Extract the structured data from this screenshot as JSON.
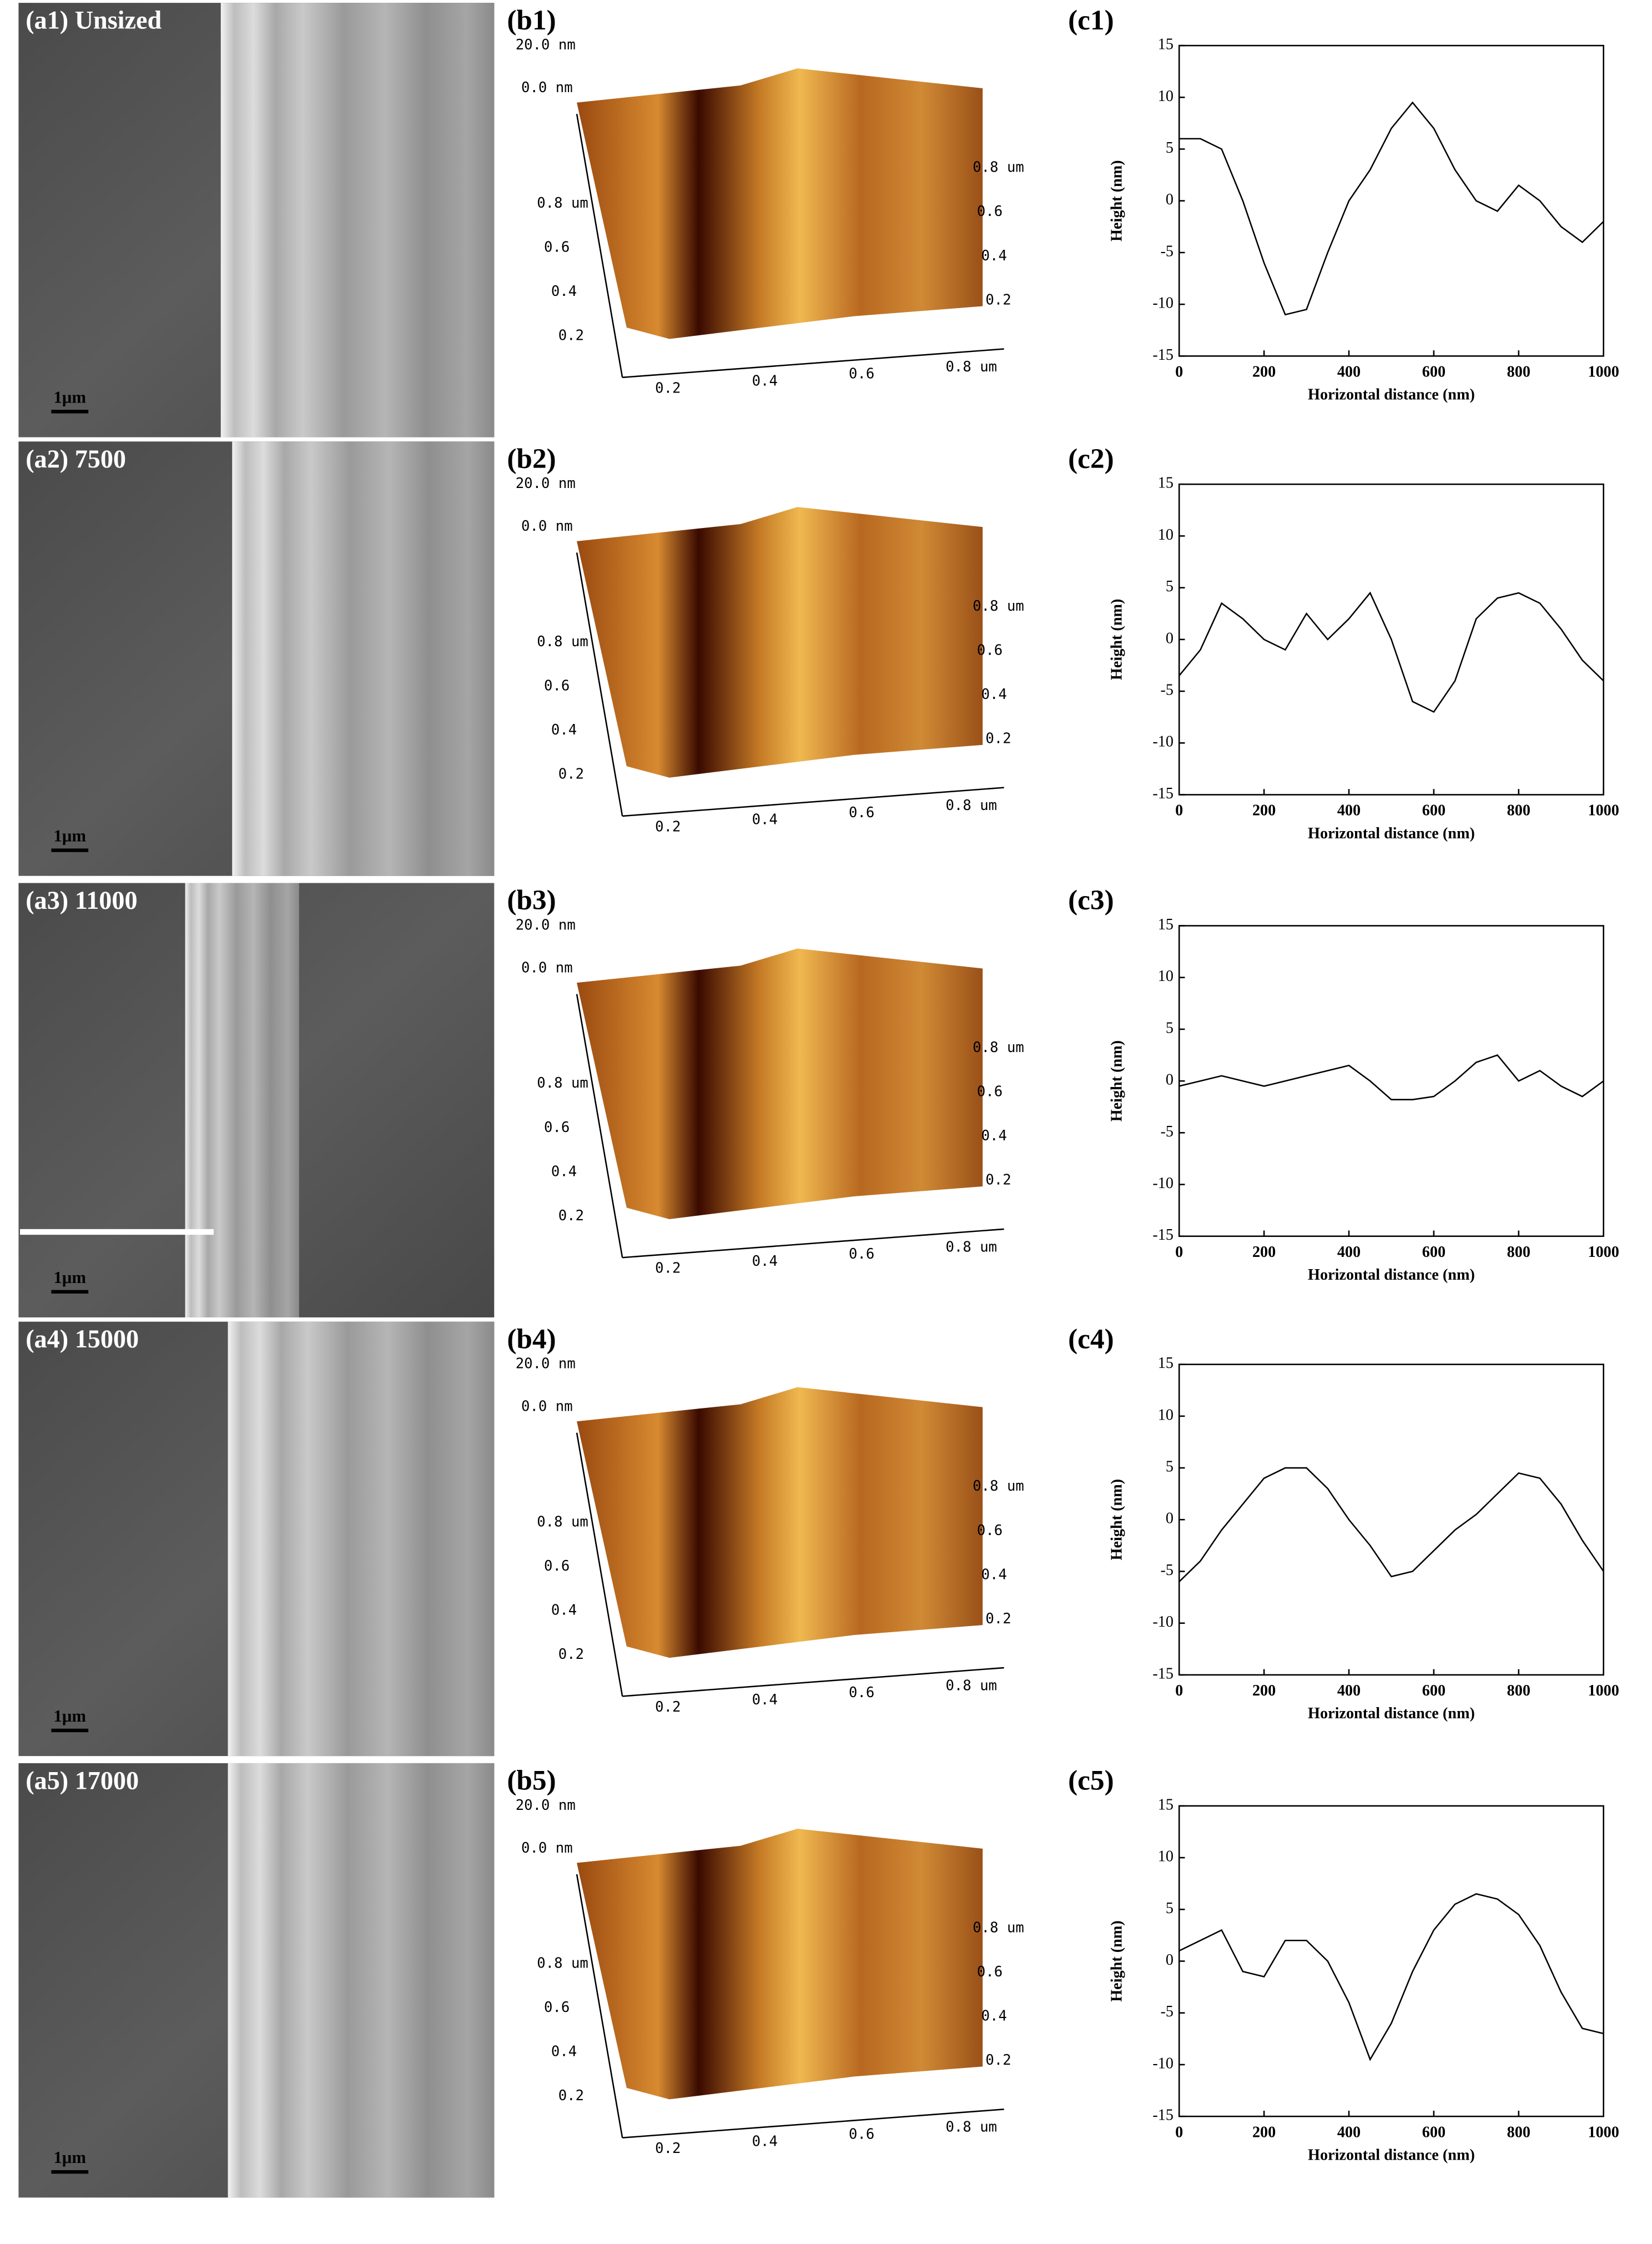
{
  "panels": [
    {
      "a_label": "(a1) Unsized",
      "scale_bar": "1μm",
      "b_label": "(b1)",
      "z_top": "20.0 nm",
      "z_zero": "0.0 nm",
      "left_ticks": [
        "0.8 um",
        "0.6",
        "0.4",
        "0.2"
      ],
      "right_ticks": [
        "0.8 um",
        "0.6",
        "0.4",
        "0.2"
      ],
      "bottom_ticks": [
        "0.2",
        "0.4",
        "0.6",
        "0.8 um"
      ]
    },
    {
      "a_label": "(a2) 7500",
      "scale_bar": "1μm",
      "b_label": "(b2)",
      "z_top": "20.0 nm",
      "z_zero": "0.0 nm",
      "left_ticks": [
        "0.8 um",
        "0.6",
        "0.4",
        "0.2"
      ],
      "right_ticks": [
        "0.8 um",
        "0.6",
        "0.4",
        "0.2"
      ],
      "bottom_ticks": [
        "0.2",
        "0.4",
        "0.6",
        "0.8 um"
      ]
    },
    {
      "a_label": "(a3) 11000",
      "scale_bar": "1μm",
      "b_label": "(b3)",
      "z_top": "20.0 nm",
      "z_zero": "0.0 nm",
      "left_ticks": [
        "0.8 um",
        "0.6",
        "0.4",
        "0.2"
      ],
      "right_ticks": [
        "0.8 um",
        "0.6",
        "0.4",
        "0.2"
      ],
      "bottom_ticks": [
        "0.2",
        "0.4",
        "0.6",
        "0.8 um"
      ]
    },
    {
      "a_label": "(a4) 15000",
      "scale_bar": "1μm",
      "b_label": "(b4)",
      "z_top": "20.0 nm",
      "z_zero": "0.0 nm",
      "left_ticks": [
        "0.8 um",
        "0.6",
        "0.4",
        "0.2"
      ],
      "right_ticks": [
        "0.8 um",
        "0.6",
        "0.4",
        "0.2"
      ],
      "bottom_ticks": [
        "0.2",
        "0.4",
        "0.6",
        "0.8 um"
      ]
    },
    {
      "a_label": "(a5) 17000",
      "scale_bar": "1μm",
      "b_label": "(b5)",
      "z_top": "20.0 nm",
      "z_zero": "0.0 nm",
      "left_ticks": [
        "0.8 um",
        "0.6",
        "0.4",
        "0.2"
      ],
      "right_ticks": [
        "0.8 um",
        "0.6",
        "0.4",
        "0.2"
      ],
      "bottom_ticks": [
        "0.2",
        "0.4",
        "0.6",
        "0.8 um"
      ]
    }
  ],
  "chart_data": [
    {
      "type": "line",
      "title": "(c1)",
      "xlabel": "Horizontal distance (nm)",
      "ylabel": "Height (nm)",
      "color": "#000000",
      "x": [
        0,
        50,
        100,
        150,
        200,
        250,
        300,
        350,
        400,
        450,
        500,
        550,
        600,
        650,
        700,
        750,
        800,
        850,
        900,
        950,
        1000
      ],
      "values": [
        6,
        6,
        5,
        0,
        -6,
        -11,
        -10.5,
        -5,
        0,
        3,
        7,
        9.5,
        7,
        3,
        0,
        -1,
        1.5,
        0,
        -2.5,
        -4,
        -2
      ],
      "xlim": [
        0,
        1000
      ],
      "ylim": [
        -15,
        15
      ],
      "xticks": [
        0,
        200,
        400,
        600,
        800,
        1000
      ],
      "yticks": [
        -15,
        -10,
        -5,
        0,
        5,
        10,
        15
      ]
    },
    {
      "type": "line",
      "title": "(c2)",
      "xlabel": "Horizontal distance (nm)",
      "ylabel": "Height (nm)",
      "color": "#000000",
      "x": [
        0,
        50,
        100,
        150,
        200,
        250,
        300,
        350,
        400,
        450,
        500,
        550,
        600,
        650,
        700,
        750,
        800,
        850,
        900,
        950,
        1000
      ],
      "values": [
        -3.5,
        -1,
        3.5,
        2,
        0,
        -1,
        2.5,
        0,
        2,
        4.5,
        0,
        -6,
        -7,
        -4,
        2,
        4,
        4.5,
        3.5,
        1,
        -2,
        -4
      ],
      "xlim": [
        0,
        1000
      ],
      "ylim": [
        -15,
        15
      ],
      "xticks": [
        0,
        200,
        400,
        600,
        800,
        1000
      ],
      "yticks": [
        -15,
        -10,
        -5,
        0,
        5,
        10,
        15
      ]
    },
    {
      "type": "line",
      "title": "(c3)",
      "xlabel": "Horizontal distance (nm)",
      "ylabel": "Height (nm)",
      "color": "#000000",
      "x": [
        0,
        50,
        100,
        150,
        200,
        250,
        300,
        350,
        400,
        450,
        500,
        550,
        600,
        650,
        700,
        750,
        800,
        850,
        900,
        950,
        1000
      ],
      "values": [
        -0.5,
        0,
        0.5,
        0,
        -0.5,
        0,
        0.5,
        1,
        1.5,
        0,
        -1.8,
        -1.8,
        -1.5,
        0,
        1.8,
        2.5,
        0,
        1,
        -0.5,
        -1.5,
        0
      ],
      "xlim": [
        0,
        1000
      ],
      "ylim": [
        -15,
        15
      ],
      "xticks": [
        0,
        200,
        400,
        600,
        800,
        1000
      ],
      "yticks": [
        -15,
        -10,
        -5,
        0,
        5,
        10,
        15
      ]
    },
    {
      "type": "line",
      "title": "(c4)",
      "xlabel": "Horizontal distance (nm)",
      "ylabel": "Height (nm)",
      "color": "#000000",
      "x": [
        0,
        50,
        100,
        150,
        200,
        250,
        300,
        350,
        400,
        450,
        500,
        550,
        600,
        650,
        700,
        750,
        800,
        850,
        900,
        950,
        1000
      ],
      "values": [
        -6,
        -4,
        -1,
        1.5,
        4,
        5,
        5,
        3,
        0,
        -2.5,
        -5.5,
        -5,
        -3,
        -1,
        0.5,
        2.5,
        4.5,
        4,
        1.5,
        -2,
        -5
      ],
      "xlim": [
        0,
        1000
      ],
      "ylim": [
        -15,
        15
      ],
      "xticks": [
        0,
        200,
        400,
        600,
        800,
        1000
      ],
      "yticks": [
        -15,
        -10,
        -5,
        0,
        5,
        10,
        15
      ]
    },
    {
      "type": "line",
      "title": "(c5)",
      "xlabel": "Horizontal distance (nm)",
      "ylabel": "Height (nm)",
      "color": "#000000",
      "x": [
        0,
        50,
        100,
        150,
        200,
        250,
        300,
        350,
        400,
        450,
        500,
        550,
        600,
        650,
        700,
        750,
        800,
        850,
        900,
        950,
        1000
      ],
      "values": [
        1,
        2,
        3,
        -1,
        -1.5,
        2,
        2,
        0,
        -4,
        -9.5,
        -6,
        -1,
        3,
        5.5,
        6.5,
        6,
        4.5,
        1.5,
        -3,
        -6.5,
        -7
      ],
      "xlim": [
        0,
        1000
      ],
      "ylim": [
        -15,
        15
      ],
      "xticks": [
        0,
        200,
        400,
        600,
        800,
        1000
      ],
      "yticks": [
        -15,
        -10,
        -5,
        0,
        5,
        10,
        15
      ]
    }
  ]
}
